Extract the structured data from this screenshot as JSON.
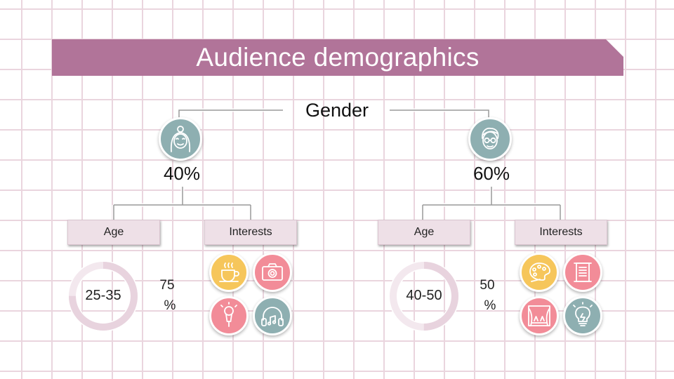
{
  "title": "Audience demographics",
  "gender_label": "Gender",
  "colors": {
    "banner": "#b17499",
    "teal": "#8eafb1",
    "yellow": "#f6c65b",
    "pink": "#f28c98",
    "ring_track": "#f3e8ee"
  },
  "female": {
    "icon": "female-avatar-icon",
    "percent": "40%",
    "age_label": "Age",
    "interests_label": "Interests",
    "age_range": "25-35",
    "age_share_number": "75",
    "age_share_unit": "%",
    "age_ring_fraction": 0.75,
    "interests": [
      "coffee-cup-icon",
      "camera-icon",
      "microphone-icon",
      "headphones-icon"
    ]
  },
  "male": {
    "icon": "male-avatar-icon",
    "percent": "60%",
    "age_label": "Age",
    "interests_label": "Interests",
    "age_range": "40-50",
    "age_share_number": "50",
    "age_share_unit": "%",
    "age_ring_fraction": 0.5,
    "interests": [
      "paint-palette-icon",
      "scroll-icon",
      "theater-stage-icon",
      "lightbulb-icon"
    ]
  }
}
